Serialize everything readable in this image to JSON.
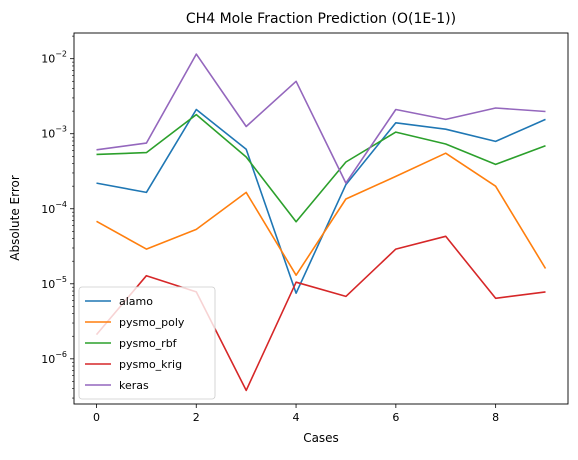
{
  "chart_data": {
    "type": "line",
    "title": "CH4 Mole Fraction Prediction (O(1E-1))",
    "xlabel": "Cases",
    "ylabel": "Absolute Error",
    "yscale": "log",
    "xlim": [
      -0.45,
      9.45
    ],
    "ylim": [
      2.5e-07,
      0.022
    ],
    "x": [
      0,
      1,
      2,
      3,
      4,
      5,
      6,
      7,
      8,
      9
    ],
    "x_ticks": [
      0,
      2,
      4,
      6,
      8
    ],
    "y_ticks": [
      {
        "value": 1e-06,
        "base": "10",
        "exp": "−6"
      },
      {
        "value": 1e-05,
        "base": "10",
        "exp": "−5"
      },
      {
        "value": 0.0001,
        "base": "10",
        "exp": "−4"
      },
      {
        "value": 0.001,
        "base": "10",
        "exp": "−3"
      },
      {
        "value": 0.01,
        "base": "10",
        "exp": "−2"
      }
    ],
    "grid": false,
    "legend_position": "lower-left",
    "series": [
      {
        "name": "alamo",
        "color": "#1f77b4",
        "values": [
          0.00022,
          0.000165,
          0.0021,
          0.00062,
          7.5e-06,
          0.00021,
          0.0014,
          0.00115,
          0.00079,
          0.00155
        ]
      },
      {
        "name": "pysmo_poly",
        "color": "#ff7f0e",
        "values": [
          6.8e-05,
          2.9e-05,
          5.3e-05,
          0.000165,
          1.3e-05,
          0.000135,
          0.00027,
          0.00055,
          0.0002,
          1.6e-05
        ]
      },
      {
        "name": "pysmo_rbf",
        "color": "#2ca02c",
        "values": [
          0.00053,
          0.00056,
          0.0018,
          0.00049,
          6.7e-05,
          0.00042,
          0.00105,
          0.00073,
          0.00039,
          0.00069
        ]
      },
      {
        "name": "pysmo_krig",
        "color": "#d62728",
        "values": [
          2.1e-06,
          1.28e-05,
          7.8e-06,
          3.8e-07,
          1.05e-05,
          6.8e-06,
          2.9e-05,
          4.3e-05,
          6.4e-06,
          7.8e-06
        ]
      },
      {
        "name": "keras",
        "color": "#9467bd",
        "values": [
          0.00061,
          0.00075,
          0.0115,
          0.00125,
          0.005,
          0.00022,
          0.0021,
          0.00155,
          0.0022,
          0.00198
        ]
      }
    ]
  }
}
